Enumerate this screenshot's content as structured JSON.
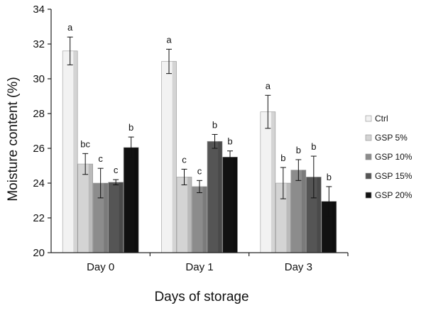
{
  "chart_data": {
    "type": "bar",
    "title": "",
    "xlabel": "Days of storage",
    "ylabel": "Moisture content (%)",
    "ylim": [
      20,
      34
    ],
    "yticks": [
      "20",
      "22",
      "24",
      "26",
      "28",
      "30",
      "32",
      "34"
    ],
    "categories": [
      "Day 0",
      "Day 1",
      "Day 3"
    ],
    "legend_position": "right",
    "series": [
      {
        "name": "Ctrl",
        "color": "#f2f2f2",
        "values": [
          31.6,
          31.0,
          28.1
        ],
        "errors": [
          0.8,
          0.7,
          0.95
        ],
        "letters": [
          "a",
          "a",
          "a"
        ]
      },
      {
        "name": "GSP 5%",
        "color": "#d4d4d4",
        "values": [
          25.1,
          24.35,
          24.0
        ],
        "errors": [
          0.6,
          0.45,
          0.9
        ],
        "letters": [
          "bc",
          "c",
          "b"
        ]
      },
      {
        "name": "GSP 10%",
        "color": "#8c8c8c",
        "values": [
          24.0,
          23.8,
          24.75
        ],
        "errors": [
          0.85,
          0.35,
          0.6
        ],
        "letters": [
          "c",
          "c",
          "b"
        ]
      },
      {
        "name": "GSP 15%",
        "color": "#555555",
        "values": [
          24.05,
          26.4,
          24.35
        ],
        "errors": [
          0.15,
          0.4,
          1.2
        ],
        "letters": [
          "c",
          "b",
          "b"
        ]
      },
      {
        "name": "GSP 20%",
        "color": "#111111",
        "values": [
          26.05,
          25.5,
          22.95
        ],
        "errors": [
          0.6,
          0.35,
          0.85
        ],
        "letters": [
          "b",
          "b",
          "b"
        ]
      }
    ]
  }
}
